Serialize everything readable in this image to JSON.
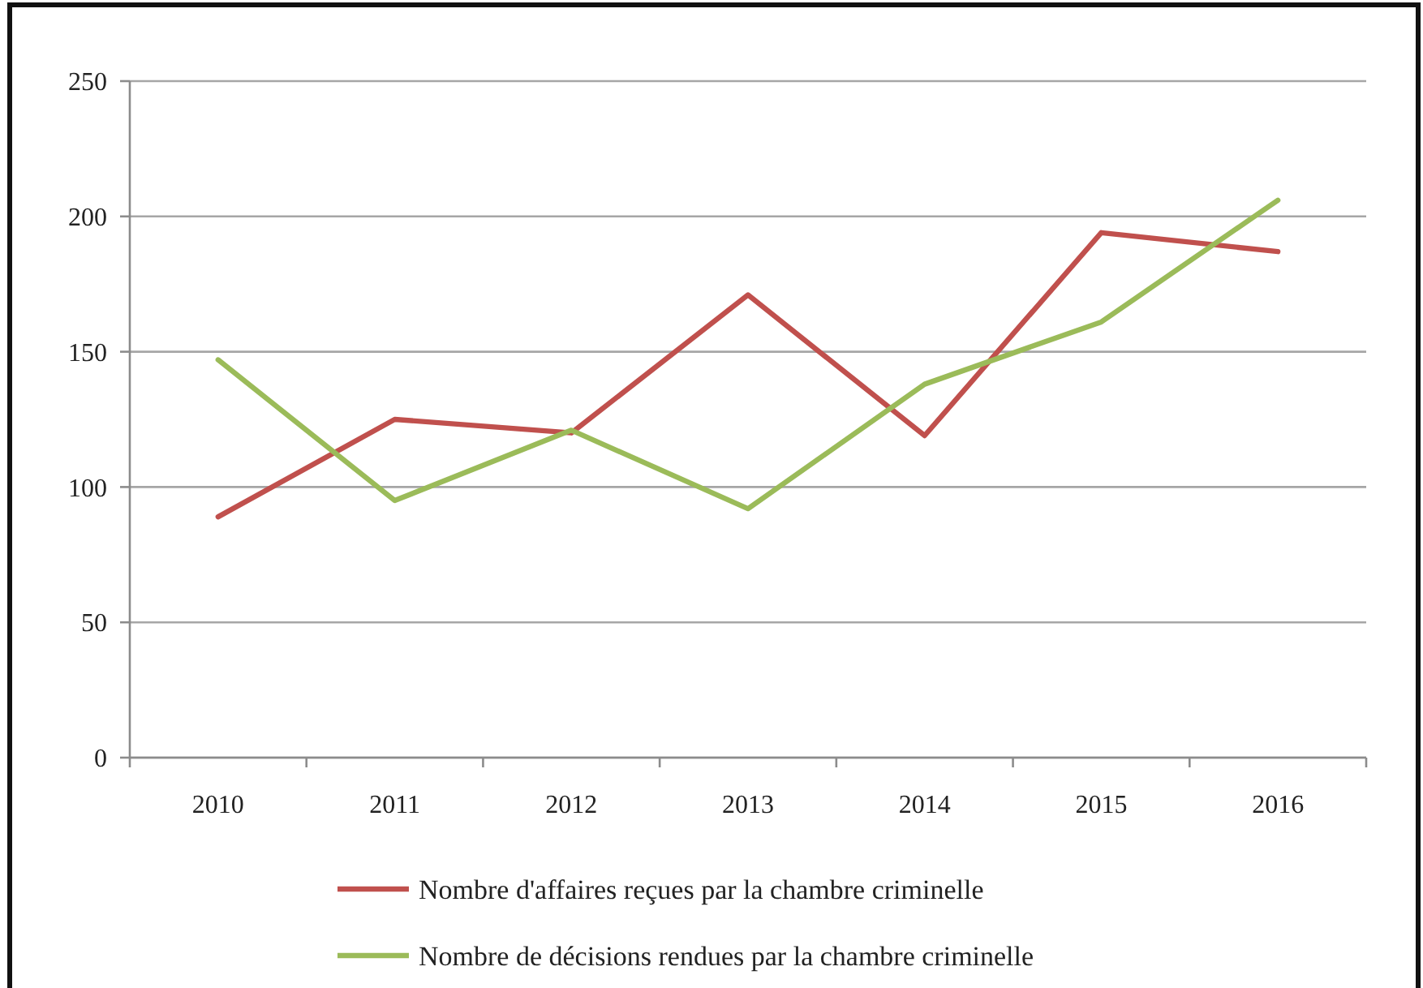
{
  "chart_data": {
    "type": "line",
    "categories": [
      "2010",
      "2011",
      "2012",
      "2013",
      "2014",
      "2015",
      "2016"
    ],
    "series": [
      {
        "name": "Nombre d'affaires reçues par la chambre criminelle",
        "color": "#c0504d",
        "values": [
          89,
          125,
          120,
          171,
          119,
          194,
          187
        ]
      },
      {
        "name": "Nombre de décisions rendues par la chambre criminelle",
        "color": "#9bbb59",
        "values": [
          147,
          95,
          121,
          92,
          138,
          161,
          206
        ]
      }
    ],
    "ylim": [
      0,
      250
    ],
    "yticks": [
      0,
      50,
      100,
      150,
      200,
      250
    ],
    "grid": "y",
    "legend": "bottom",
    "line_style": "solid"
  }
}
